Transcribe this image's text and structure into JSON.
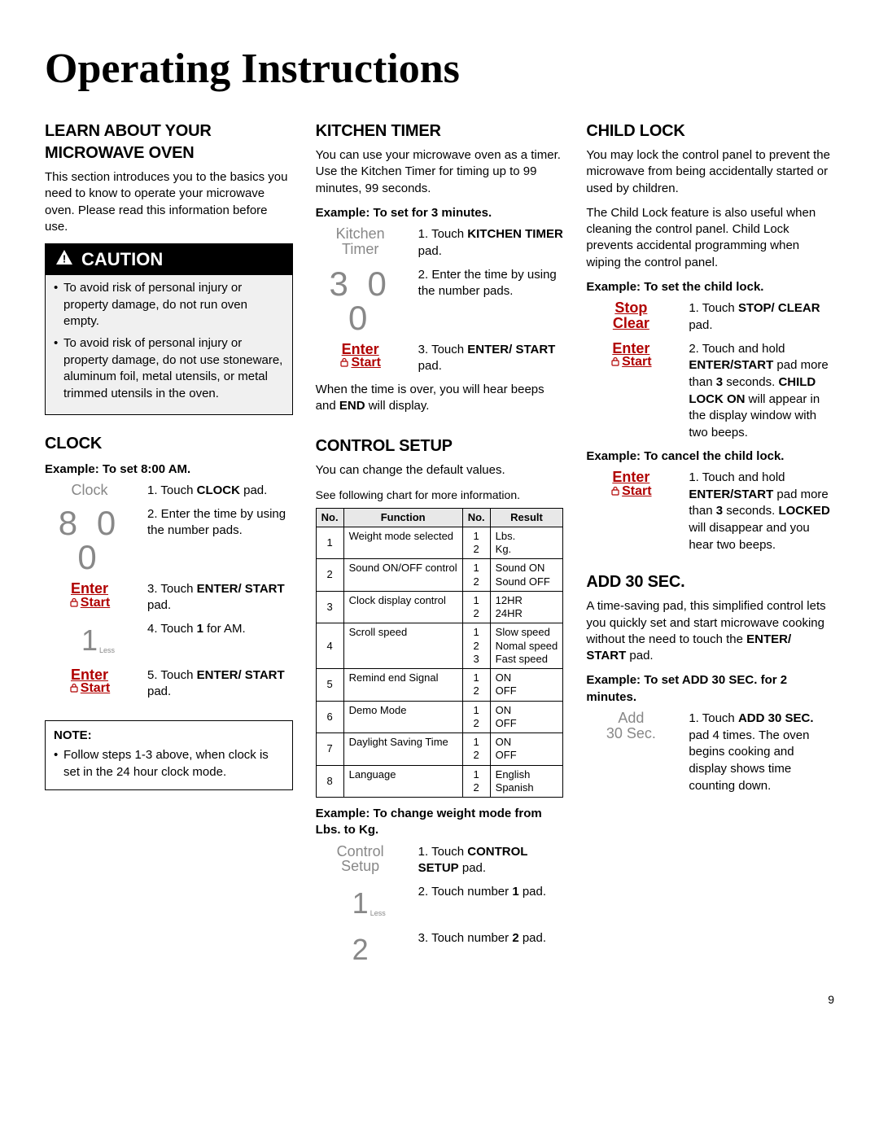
{
  "page_title": "Operating Instructions",
  "page_number": "9",
  "col1": {
    "learn": {
      "heading": "LEARN ABOUT YOUR MICROWAVE OVEN",
      "intro": "This section introduces you to the basics you need to know to operate your microwave oven. Please read this information before use."
    },
    "caution": {
      "label": "CAUTION",
      "items": [
        "To avoid risk of personal injury or property damage, do not run oven empty.",
        "To avoid risk of personal injury or property damage, do not use stoneware, aluminum foil, metal utensils, or metal trimmed utensils in the oven."
      ]
    },
    "clock": {
      "heading": "CLOCK",
      "example_label": "Example: To set 8:00 AM.",
      "steps": [
        {
          "pad_type": "label",
          "pad_text": "Clock",
          "text_prefix": "1. Touch ",
          "text_bold": "CLOCK",
          "text_suffix": " pad."
        },
        {
          "pad_type": "digits",
          "pad_text": "8 0 0",
          "text_prefix": "2. Enter the time by using the number pads.",
          "text_bold": "",
          "text_suffix": ""
        },
        {
          "pad_type": "enter",
          "pad_text": "Enter",
          "pad_text2": "Start",
          "text_prefix": "3. Touch ",
          "text_bold": "ENTER/ START",
          "text_suffix": " pad."
        },
        {
          "pad_type": "num1",
          "pad_text": "1",
          "pad_sub": "Less",
          "text_prefix": "4. Touch ",
          "text_bold": "1",
          "text_suffix": " for AM."
        },
        {
          "pad_type": "enter",
          "pad_text": "Enter",
          "pad_text2": "Start",
          "text_prefix": "5. Touch ",
          "text_bold": "ENTER/ START",
          "text_suffix": " pad."
        }
      ],
      "note_title": "NOTE:",
      "note_item": "Follow steps 1-3 above, when clock is set in the 24 hour clock mode."
    }
  },
  "col2": {
    "timer": {
      "heading": "KITCHEN TIMER",
      "intro": "You can use your microwave oven as a timer. Use the Kitchen Timer for timing up to 99 minutes, 99 seconds.",
      "example_label": "Example: To set for 3 minutes.",
      "steps": [
        {
          "pad_type": "label2",
          "pad_text": "Kitchen",
          "pad_text2": "Timer",
          "text_prefix": "1. Touch ",
          "text_bold": "KITCHEN TIMER",
          "text_suffix": " pad."
        },
        {
          "pad_type": "digits",
          "pad_text": "3 0 0",
          "text_prefix": "2. Enter the time by using the number pads.",
          "text_bold": "",
          "text_suffix": ""
        },
        {
          "pad_type": "enter",
          "pad_text": "Enter",
          "pad_text2": "Start",
          "text_prefix": "3. Touch ",
          "text_bold": "ENTER/ START",
          "text_suffix": " pad."
        }
      ],
      "after_a": "When the time is over, you will hear beeps and ",
      "after_b": "END",
      "after_c": " will display."
    },
    "setup": {
      "heading": "CONTROL SETUP",
      "intro": "You can change the default values.",
      "intro2": "See following chart for more information.",
      "table": {
        "headers": [
          "No.",
          "Function",
          "No.",
          "Result"
        ],
        "rows": [
          {
            "n": "1",
            "fn": "Weight mode selected",
            "opts": [
              "1",
              "2"
            ],
            "res": [
              "Lbs.",
              "Kg."
            ]
          },
          {
            "n": "2",
            "fn": "Sound ON/OFF control",
            "opts": [
              "1",
              "2"
            ],
            "res": [
              "Sound ON",
              "Sound OFF"
            ]
          },
          {
            "n": "3",
            "fn": "Clock display control",
            "opts": [
              "1",
              "2"
            ],
            "res": [
              "12HR",
              "24HR"
            ]
          },
          {
            "n": "4",
            "fn": "Scroll speed",
            "opts": [
              "1",
              "2",
              "3"
            ],
            "res": [
              "Slow speed",
              "Nomal speed",
              "Fast speed"
            ]
          },
          {
            "n": "5",
            "fn": "Remind end Signal",
            "opts": [
              "1",
              "2"
            ],
            "res": [
              "ON",
              "OFF"
            ]
          },
          {
            "n": "6",
            "fn": "Demo Mode",
            "opts": [
              "1",
              "2"
            ],
            "res": [
              "ON",
              "OFF"
            ]
          },
          {
            "n": "7",
            "fn": "Daylight Saving Time",
            "opts": [
              "1",
              "2"
            ],
            "res": [
              "ON",
              "OFF"
            ]
          },
          {
            "n": "8",
            "fn": "Language",
            "opts": [
              "1",
              "2"
            ],
            "res": [
              "English",
              "Spanish"
            ]
          }
        ]
      },
      "example_label": "Example: To change weight mode from Lbs. to Kg.",
      "steps": [
        {
          "pad_type": "label2",
          "pad_text": "Control",
          "pad_text2": "Setup",
          "text_prefix": "1. Touch ",
          "text_bold": "CONTROL SETUP",
          "text_suffix": " pad."
        },
        {
          "pad_type": "num1",
          "pad_text": "1",
          "pad_sub": "Less",
          "text_prefix": "2. Touch number ",
          "text_bold": "1",
          "text_suffix": " pad."
        },
        {
          "pad_type": "num",
          "pad_text": "2",
          "text_prefix": "3. Touch number ",
          "text_bold": "2",
          "text_suffix": " pad."
        }
      ]
    }
  },
  "col3": {
    "childlock": {
      "heading": "CHILD LOCK",
      "intro1": "You may lock the control panel to prevent the microwave from being accidentally started or used by children.",
      "intro2": "The Child Lock feature is also useful when cleaning the control panel. Child Lock prevents accidental programming when wiping the control panel.",
      "ex1_label": "Example: To set the child lock.",
      "ex1_steps": [
        {
          "pad_type": "stop",
          "pad_text": "Stop",
          "pad_text2": "Clear",
          "text_prefix": "1. Touch ",
          "text_bold": "STOP/ CLEAR",
          "text_suffix": " pad."
        },
        {
          "pad_type": "enter",
          "pad_text": "Enter",
          "pad_text2": "Start",
          "text_prefix": "2. Touch and hold ",
          "text_bold": "ENTER/START",
          "text_mid": " pad more than ",
          "text_bold2": "3",
          "text_mid2": " seconds. ",
          "text_bold3": "CHILD LOCK ON",
          "text_suffix": " will appear in the display window with two beeps."
        }
      ],
      "ex2_label": "Example: To cancel the child lock.",
      "ex2_steps": [
        {
          "pad_type": "enter",
          "pad_text": "Enter",
          "pad_text2": "Start",
          "text_prefix": "1. Touch and hold ",
          "text_bold": "ENTER/START",
          "text_mid": " pad more than ",
          "text_bold2": "3",
          "text_mid2": " seconds. ",
          "text_bold3": "LOCKED",
          "text_suffix": " will disappear and you hear two beeps."
        }
      ]
    },
    "add30": {
      "heading": "ADD 30 SEC.",
      "intro_a": "A time-saving pad, this simplified control lets you quickly set and start microwave cooking without the need to touch the ",
      "intro_b": "ENTER/ START",
      "intro_c": " pad.",
      "example_label": "Example: To set ADD 30 SEC. for 2 minutes.",
      "steps": [
        {
          "pad_type": "add30",
          "pad_text": "Add",
          "pad_text2": "30 Sec.",
          "text_prefix": "1. Touch ",
          "text_bold": "ADD 30 SEC.",
          "text_suffix": " pad 4 times. The oven begins cooking and display shows time counting down."
        }
      ]
    }
  }
}
